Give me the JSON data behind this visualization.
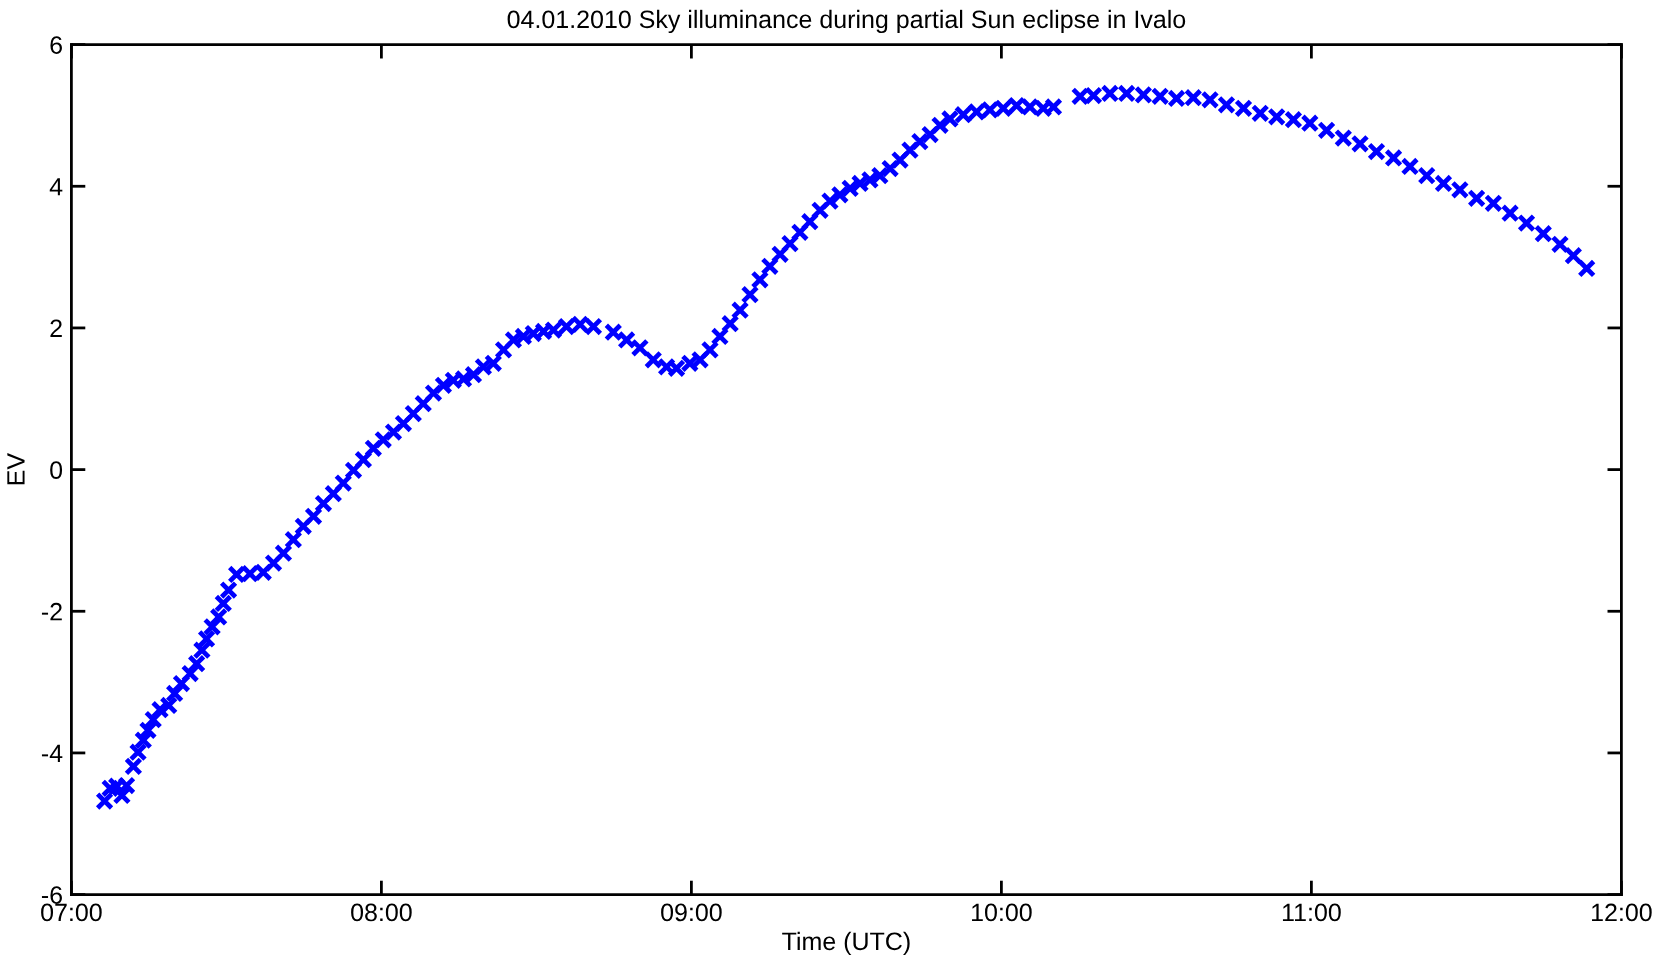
{
  "chart_data": {
    "type": "scatter",
    "title": "04.01.2010 Sky illuminance during partial Sun eclipse in Ivalo",
    "xlabel": "Time (UTC)",
    "ylabel": "EV",
    "x": [
      7.107,
      7.125,
      7.146,
      7.163,
      7.178,
      7.2,
      7.215,
      7.232,
      7.247,
      7.264,
      7.286,
      7.314,
      7.333,
      7.355,
      7.383,
      7.404,
      7.421,
      7.436,
      7.454,
      7.475,
      7.49,
      7.507,
      7.533,
      7.576,
      7.619,
      7.652,
      7.684,
      7.716,
      7.748,
      7.781,
      7.813,
      7.845,
      7.877,
      7.91,
      7.942,
      7.974,
      8.006,
      8.039,
      8.071,
      8.103,
      8.135,
      8.168,
      8.2,
      8.232,
      8.265,
      8.297,
      8.329,
      8.361,
      8.394,
      8.426,
      8.458,
      8.49,
      8.523,
      8.555,
      8.597,
      8.641,
      8.684,
      8.748,
      8.791,
      8.834,
      8.877,
      8.92,
      8.952,
      8.995,
      9.028,
      9.06,
      9.092,
      9.125,
      9.157,
      9.189,
      9.221,
      9.253,
      9.286,
      9.318,
      9.35,
      9.382,
      9.415,
      9.447,
      9.479,
      9.512,
      9.544,
      9.576,
      9.608,
      9.641,
      9.673,
      9.705,
      9.737,
      9.77,
      9.802,
      9.834,
      9.877,
      9.92,
      9.963,
      10.006,
      10.049,
      10.092,
      10.135,
      10.168,
      10.254,
      10.297,
      10.35,
      10.404,
      10.458,
      10.512,
      10.565,
      10.619,
      10.673,
      10.726,
      10.781,
      10.835,
      10.888,
      10.942,
      10.995,
      11.049,
      11.103,
      11.157,
      11.21,
      11.265,
      11.318,
      11.372,
      11.426,
      11.479,
      11.533,
      11.587,
      11.641,
      11.694,
      11.748,
      11.802,
      11.845,
      11.888
    ],
    "series": [
      {
        "color": "#0000ff",
        "values": [
          -4.68,
          -4.5,
          -4.47,
          -4.6,
          -4.46,
          -4.19,
          -3.99,
          -3.82,
          -3.68,
          -3.53,
          -3.39,
          -3.33,
          -3.16,
          -3.02,
          -2.88,
          -2.74,
          -2.55,
          -2.39,
          -2.22,
          -2.08,
          -1.89,
          -1.7,
          -1.48,
          -1.47,
          -1.45,
          -1.32,
          -1.18,
          -0.99,
          -0.8,
          -0.66,
          -0.48,
          -0.34,
          -0.19,
          -0.01,
          0.14,
          0.3,
          0.42,
          0.53,
          0.65,
          0.79,
          0.93,
          1.08,
          1.19,
          1.26,
          1.28,
          1.34,
          1.45,
          1.5,
          1.69,
          1.83,
          1.88,
          1.92,
          1.95,
          1.97,
          2.02,
          2.05,
          2.02,
          1.94,
          1.83,
          1.72,
          1.55,
          1.45,
          1.43,
          1.5,
          1.55,
          1.69,
          1.88,
          2.06,
          2.25,
          2.47,
          2.68,
          2.87,
          3.04,
          3.19,
          3.35,
          3.5,
          3.66,
          3.79,
          3.88,
          3.97,
          4.04,
          4.09,
          4.15,
          4.25,
          4.37,
          4.51,
          4.63,
          4.73,
          4.86,
          4.95,
          5.01,
          5.05,
          5.08,
          5.1,
          5.14,
          5.12,
          5.1,
          5.12,
          5.27,
          5.28,
          5.31,
          5.31,
          5.29,
          5.27,
          5.24,
          5.25,
          5.22,
          5.15,
          5.1,
          5.03,
          4.98,
          4.94,
          4.89,
          4.79,
          4.68,
          4.6,
          4.49,
          4.4,
          4.28,
          4.15,
          4.04,
          3.95,
          3.83,
          3.76,
          3.62,
          3.48,
          3.33,
          3.18,
          3.02,
          2.84
        ]
      }
    ],
    "marker": "cross",
    "xlim": [
      7,
      12
    ],
    "xticks": [
      {
        "value": 7,
        "label": "07:00"
      },
      {
        "value": 8,
        "label": "08:00"
      },
      {
        "value": 9,
        "label": "09:00"
      },
      {
        "value": 10,
        "label": "10:00"
      },
      {
        "value": 11,
        "label": "11:00"
      },
      {
        "value": 12,
        "label": "12:00"
      }
    ],
    "ylim": [
      -6,
      6
    ],
    "yticks": [
      -6,
      -4,
      -2,
      0,
      2,
      4,
      6
    ]
  }
}
